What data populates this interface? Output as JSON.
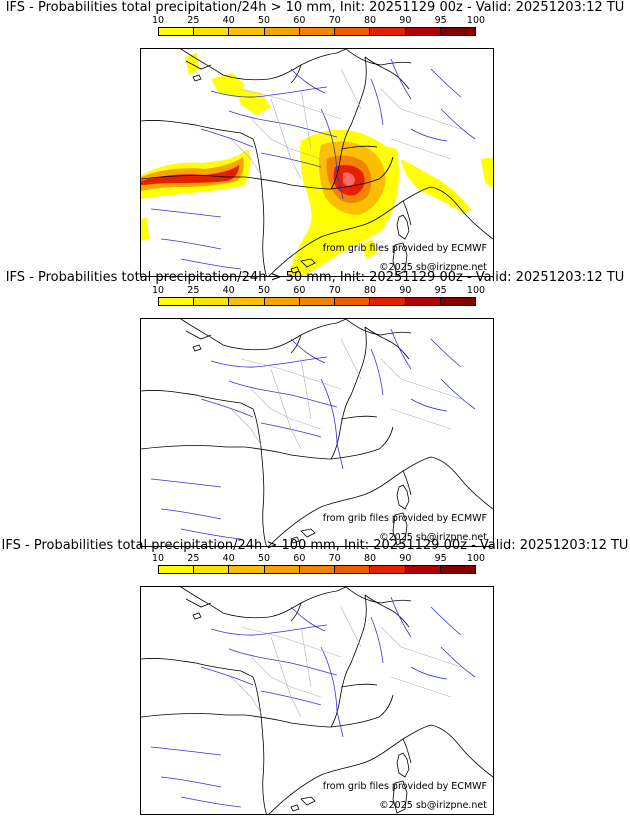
{
  "colorbar": {
    "ticks": [
      "10",
      "25",
      "40",
      "50",
      "60",
      "70",
      "80",
      "90",
      "95",
      "100"
    ],
    "colors": [
      "#ffff00",
      "#fde200",
      "#fbbf00",
      "#f7a400",
      "#f28200",
      "#ef5b00",
      "#e32000",
      "#b30000",
      "#830000"
    ]
  },
  "panels": [
    {
      "title": "IFS - Probabilities total precipitation/24h > 10 mm, Init: 20251129 00z - Valid: 20251203:12 TU",
      "credit_source": "from grib files provided by ECMWF",
      "credit_copyright": "©2025 sb@irizpne.net",
      "has_precip": true
    },
    {
      "title": "IFS - Probabilities total precipitation/24h > 50 mm, Init: 20251129 00z - Valid: 20251203:12 TU",
      "credit_source": "from grib files provided by ECMWF",
      "credit_copyright": "©2025 sb@irizpne.net",
      "has_precip": false
    },
    {
      "title": "IFS - Probabilities total precipitation/24h > 100 mm, Init: 20251129 00z - Valid: 20251203:12 TU",
      "credit_source": "from grib files provided by ECMWF",
      "credit_copyright": "©2025 sb@irizpne.net",
      "has_precip": false
    }
  ]
}
